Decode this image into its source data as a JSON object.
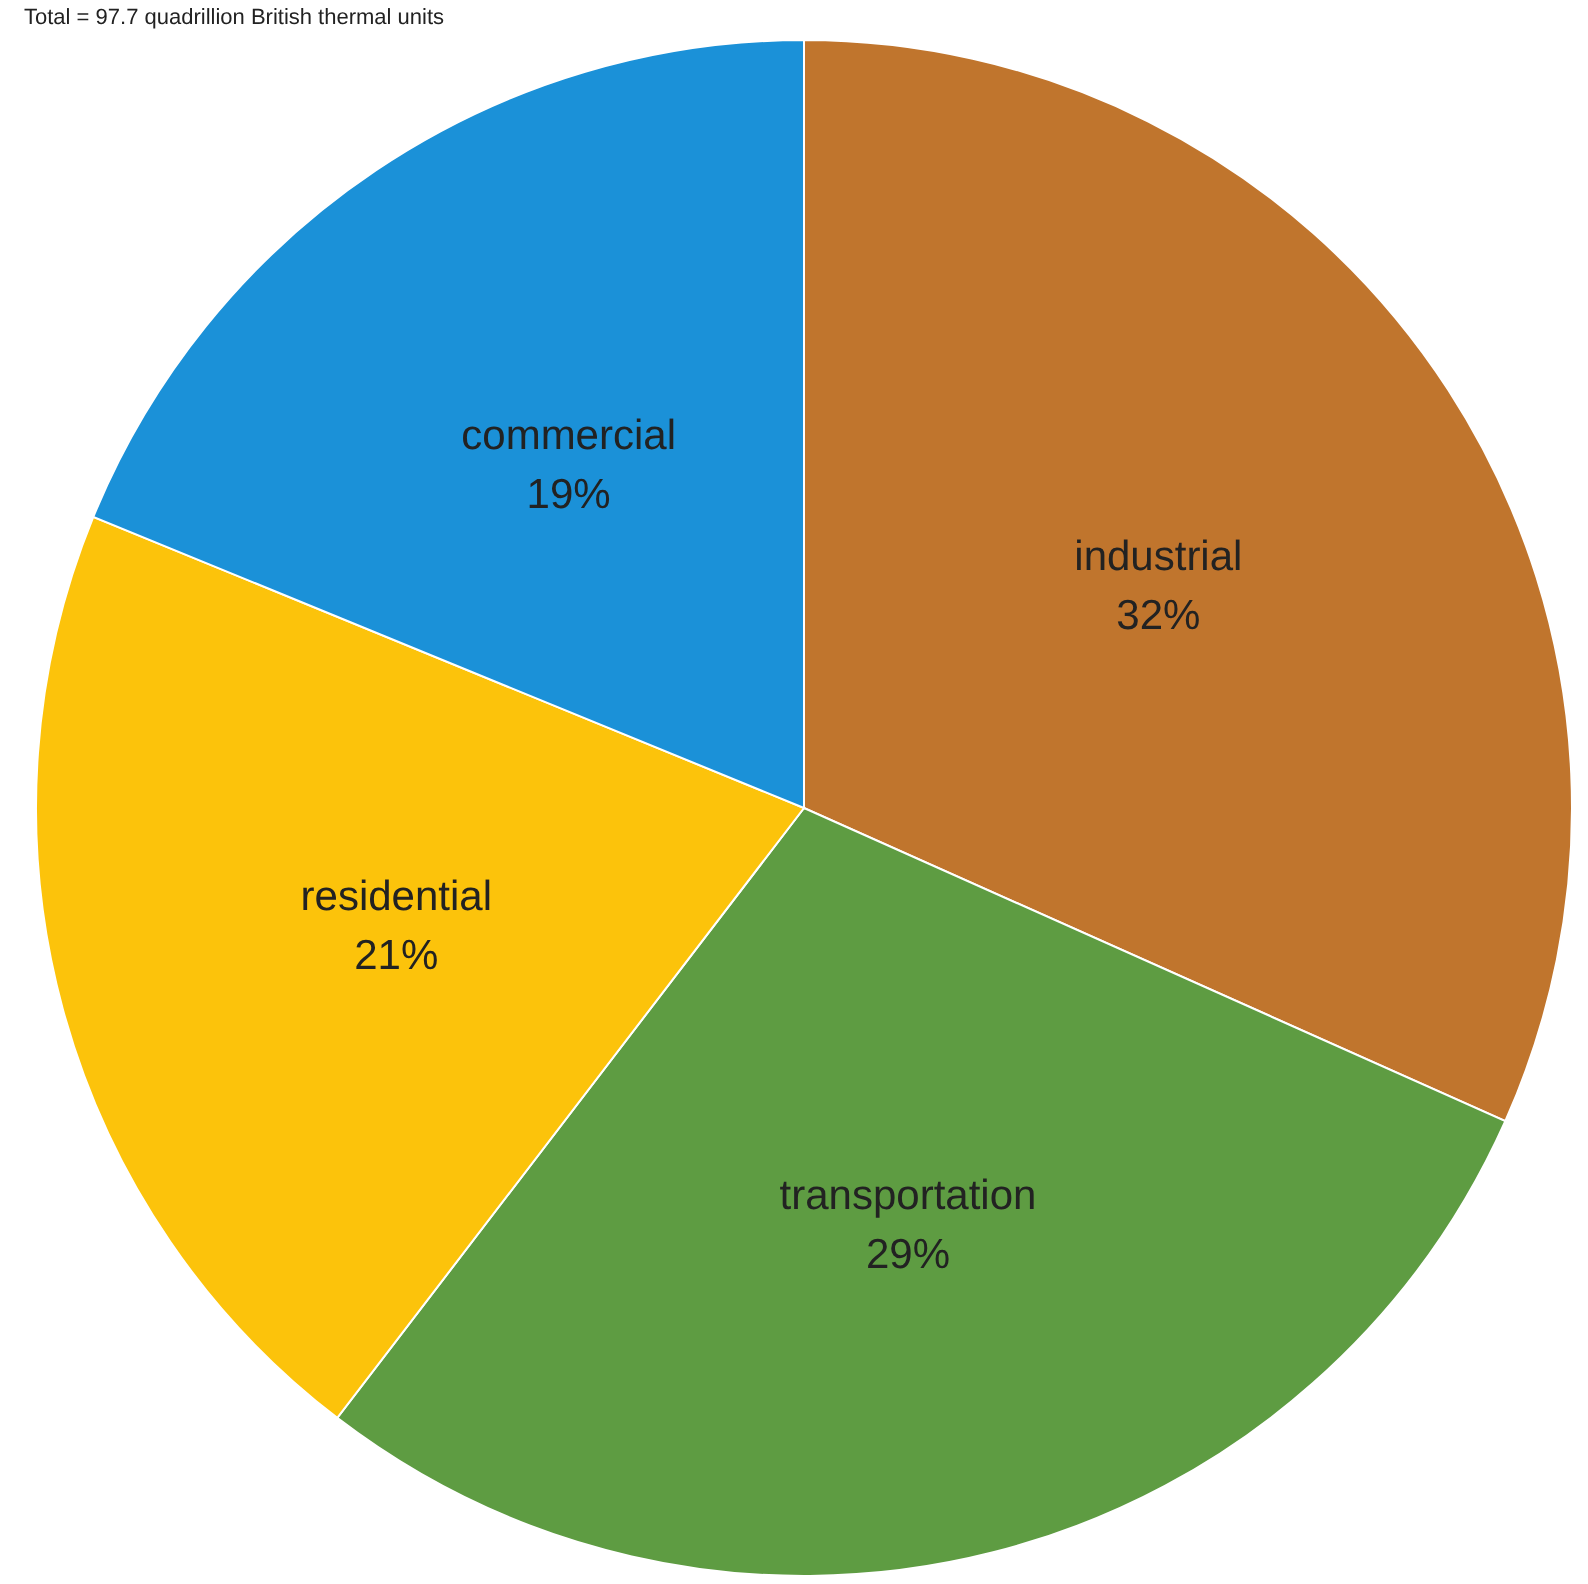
{
  "chart_data": {
    "type": "pie",
    "subtitle": "Total = 97.7 quadrillion British thermal units",
    "categories": [
      "industrial",
      "transportation",
      "residential",
      "commercial"
    ],
    "values": [
      32,
      29,
      21,
      19
    ],
    "colors": [
      "#c0752d",
      "#5e9c42",
      "#fcc30b",
      "#1b91d8"
    ],
    "value_labels": [
      "32%",
      "29%",
      "21%",
      "19%"
    ],
    "legend": false
  }
}
